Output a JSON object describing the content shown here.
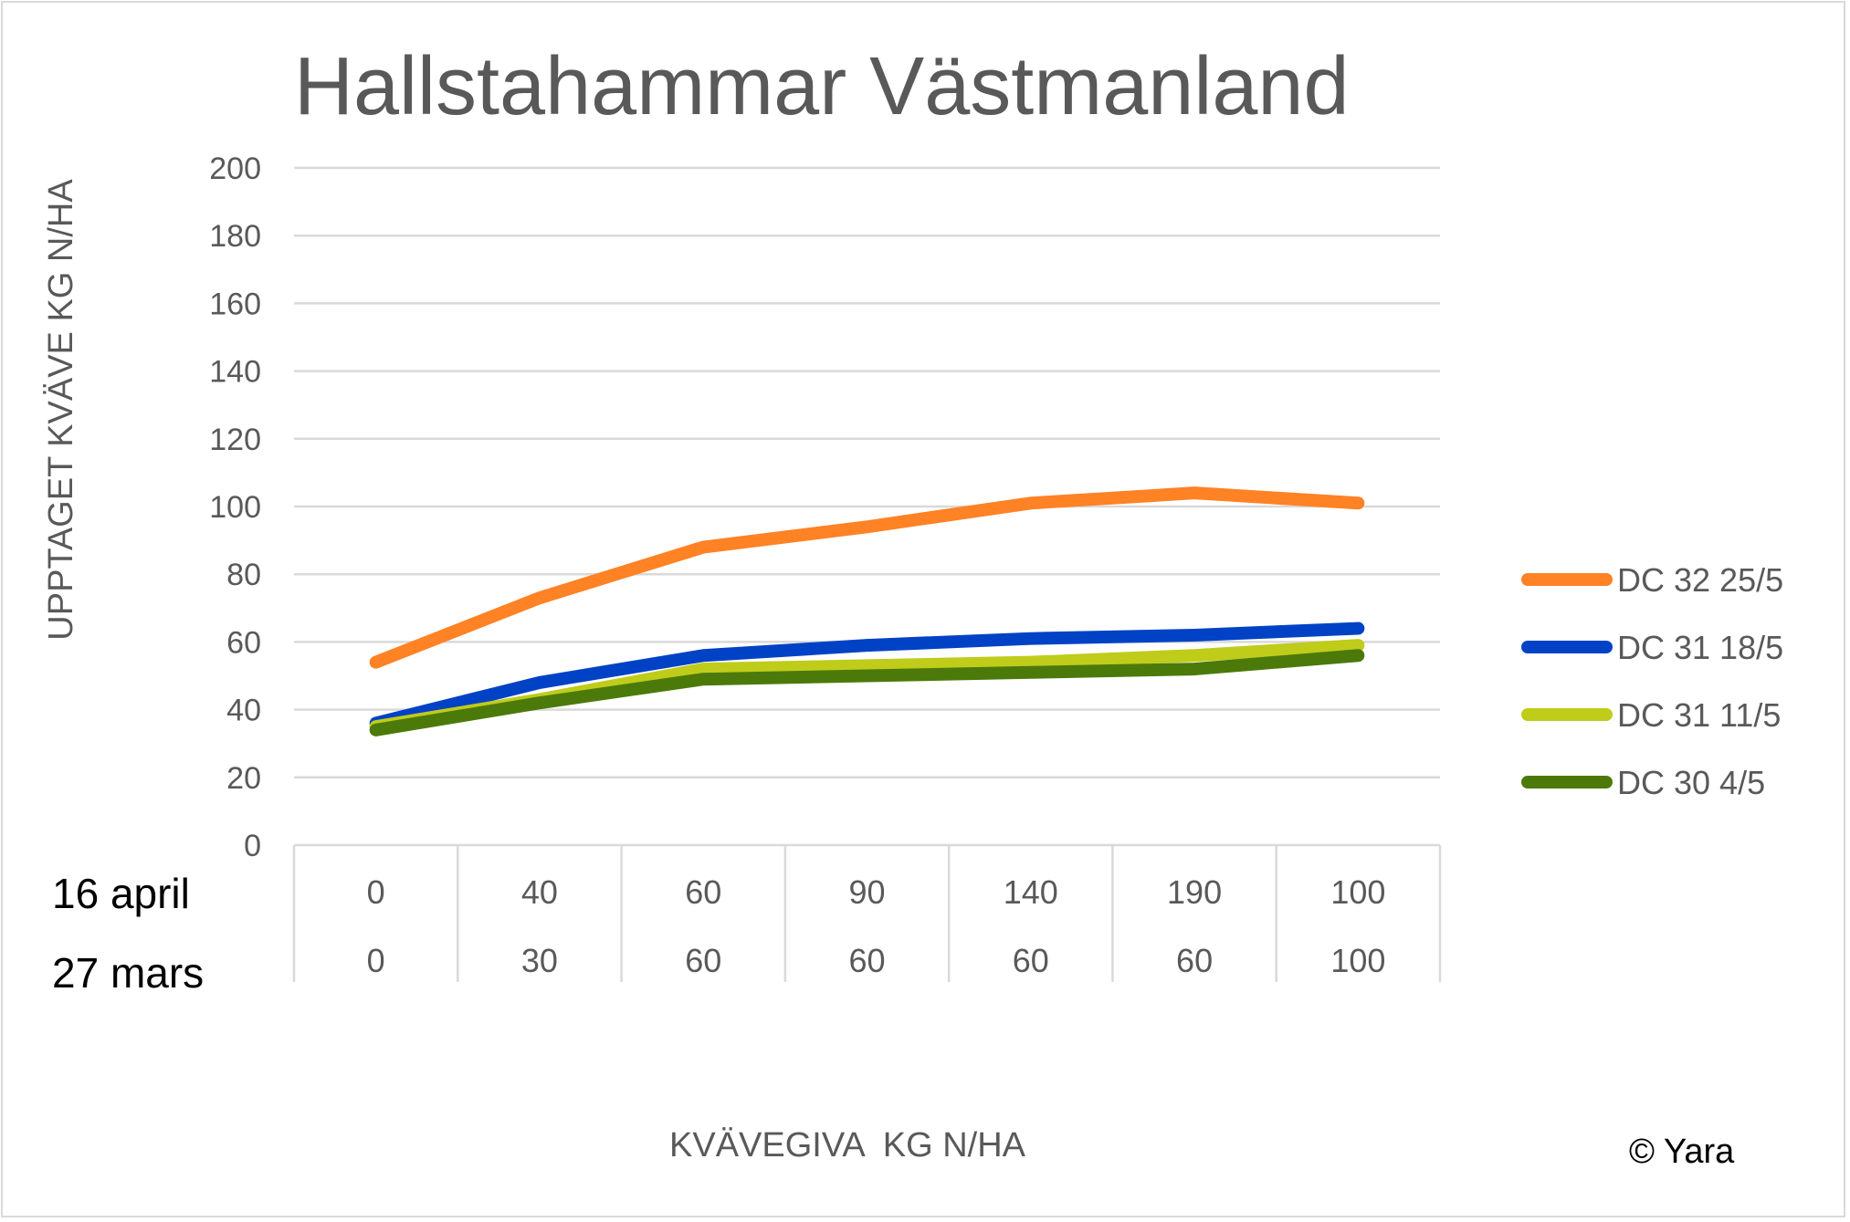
{
  "chart_data": {
    "type": "line",
    "title": "Hallstahammar Västmanland",
    "ylabel": "UPPTAGET KVÄVE KG N/HA",
    "xlabel": "KVÄVEGIVA  KG N/HA",
    "ylim": [
      0,
      200
    ],
    "yticks": [
      "0",
      "20",
      "40",
      "60",
      "80",
      "100",
      "120",
      "140",
      "160",
      "180",
      "200"
    ],
    "grid": true,
    "legend_position": "right",
    "category_rows": [
      {
        "label": "16 april",
        "values": [
          "0",
          "40",
          "60",
          "90",
          "140",
          "190",
          "100"
        ]
      },
      {
        "label": "27 mars",
        "values": [
          "0",
          "30",
          "60",
          "60",
          "60",
          "60",
          "100"
        ]
      }
    ],
    "series": [
      {
        "name": "DC 32 25/5",
        "color": "#FF8225",
        "values": [
          54,
          73,
          88,
          94,
          101,
          104,
          101
        ]
      },
      {
        "name": "DC 31 18/5",
        "color": "#0042C6",
        "values": [
          36,
          48,
          56,
          59,
          61,
          62,
          64
        ]
      },
      {
        "name": "DC 31 11/5",
        "color": "#BFCC1A",
        "values": [
          35,
          43,
          52,
          53,
          54,
          56,
          59
        ]
      },
      {
        "name": "DC 30 4/5",
        "color": "#4C7A0A",
        "values": [
          34,
          42,
          49,
          50,
          51,
          52,
          56
        ]
      }
    ]
  },
  "copyright": "© Yara"
}
